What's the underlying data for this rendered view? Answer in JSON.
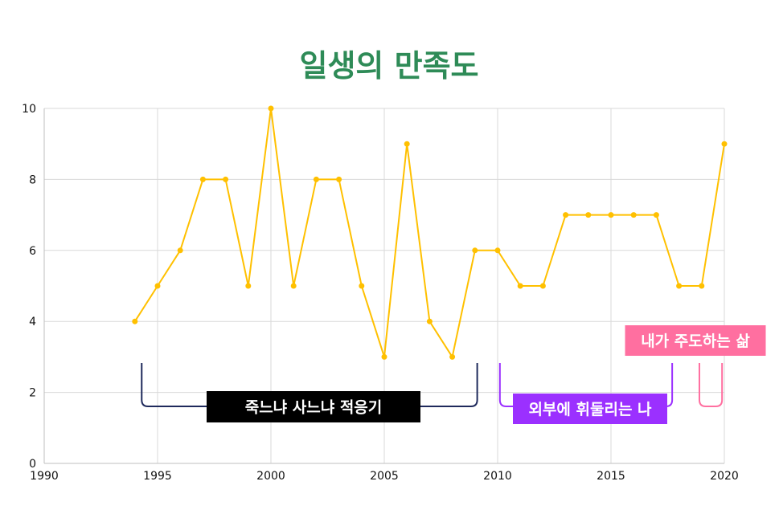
{
  "chart_data": {
    "type": "line",
    "title": "일생의 만족도",
    "xlabel": "",
    "ylabel": "",
    "xlim": [
      1990,
      2020
    ],
    "ylim": [
      0,
      10
    ],
    "x_ticks": [
      1990,
      1995,
      2000,
      2005,
      2010,
      2015,
      2020
    ],
    "y_ticks": [
      0,
      2,
      4,
      6,
      8,
      10
    ],
    "grid": true,
    "legend": "none",
    "series": [
      {
        "color": "#FFC000",
        "x": [
          1994,
          1995,
          1996,
          1997,
          1998,
          1999,
          2000,
          2001,
          2002,
          2003,
          2004,
          2005,
          2006,
          2007,
          2008,
          2009,
          2010,
          2011,
          2012,
          2013,
          2014,
          2015,
          2016,
          2017,
          2018,
          2019,
          2020
        ],
        "y": [
          4,
          5,
          6,
          8,
          8,
          5,
          10,
          5,
          8,
          8,
          5,
          3,
          9,
          4,
          3,
          6,
          6,
          5,
          5,
          7,
          7,
          7,
          7,
          7,
          5,
          5,
          9
        ]
      }
    ],
    "annotations": [
      {
        "text": "죽느냐 사느냐 적응기",
        "x_start": 1994.3,
        "x_end": 2009.1,
        "color": "#1F2A5C",
        "label_bg": "#000000"
      },
      {
        "text": "외부에 휘둘리는 나",
        "x_start": 2010.1,
        "x_end": 2017.7,
        "color": "#9B30FF",
        "label_bg": "#9B30FF"
      },
      {
        "text": "내가 주도하는 삶",
        "x_start": 2018.9,
        "x_end": 2019.9,
        "color": "#FF6FA0",
        "label_bg": "#FF6FA0"
      }
    ]
  },
  "colors": {
    "title": "#2E8B57",
    "grid": "#D9D9D9",
    "line": "#FFC000"
  }
}
